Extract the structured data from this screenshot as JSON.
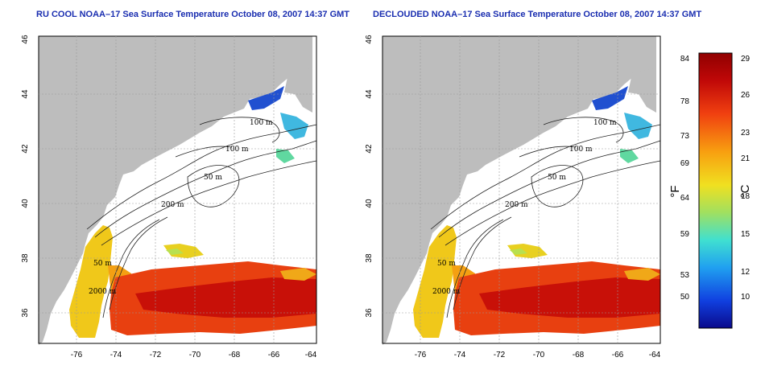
{
  "left_panel": {
    "title": "RU COOL NOAA–17 Sea Surface Temperature October 08, 2007 14:37 GMT"
  },
  "right_panel": {
    "title": "DECLOUDED NOAA–17 Sea Surface Temperature October 08, 2007 14:37 GMT"
  },
  "axes": {
    "x_ticks": [
      "-76",
      "-74",
      "-72",
      "-70",
      "-68",
      "-66",
      "-64"
    ],
    "y_ticks": [
      "36",
      "38",
      "40",
      "42",
      "44",
      "46"
    ]
  },
  "contour_labels": [
    "100 m",
    "100 m",
    "50 m",
    "200 m",
    "50 m",
    "2000 m"
  ],
  "colorbar": {
    "fahrenheit_unit": "°F",
    "celsius_unit": "°C",
    "fahrenheit_ticks": [
      "84",
      "78",
      "73",
      "69",
      "64",
      "59",
      "53",
      "50"
    ],
    "celsius_ticks": [
      "29",
      "26",
      "23",
      "21",
      "18",
      "15",
      "12",
      "10"
    ],
    "color_stops": [
      "#0a0a8c",
      "#1040e0",
      "#20a0f0",
      "#40e0d0",
      "#a0e060",
      "#f0e020",
      "#f8a010",
      "#f04010",
      "#c00808",
      "#900000"
    ]
  },
  "colors": {
    "land": "#bdbdbd",
    "no_data": "#ffffff",
    "title": "#1a2eb0"
  }
}
